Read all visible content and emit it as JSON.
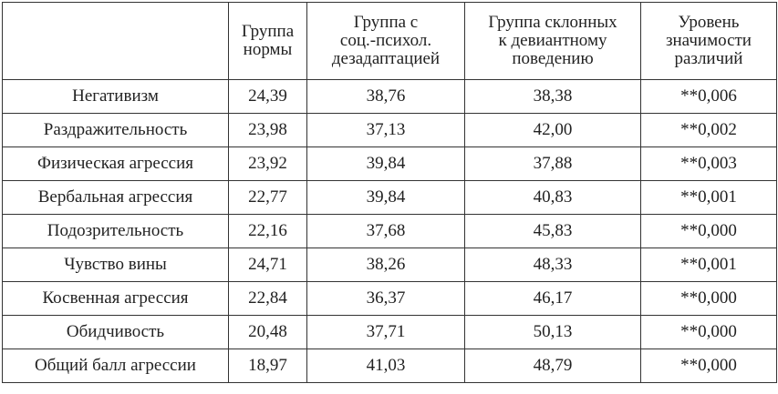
{
  "table": {
    "header": [
      "Группа\nнормы",
      "Группа с\nсоц.-психол.\nдезадаптацией",
      "Группа склонных\nк девиантному\nповедению",
      "Уровень\nзначимости\nразличий"
    ],
    "rows": [
      [
        "Негативизм",
        "24,39",
        "38,76",
        "38,38",
        "**0,006"
      ],
      [
        "Раздражительность",
        "23,98",
        "37,13",
        "42,00",
        "**0,002"
      ],
      [
        "Физическая агрессия",
        "23,92",
        "39,84",
        "37,88",
        "**0,003"
      ],
      [
        "Вербальная агрессия",
        "22,77",
        "39,84",
        "40,83",
        "**0,001"
      ],
      [
        "Подозрительность",
        "22,16",
        "37,68",
        "45,83",
        "**0,000"
      ],
      [
        "Чувство вины",
        "24,71",
        "38,26",
        "48,33",
        "**0,001"
      ],
      [
        "Косвенная агрессия",
        "22,84",
        "36,37",
        "46,17",
        "**0,000"
      ],
      [
        "Обидчивость",
        "20,48",
        "37,71",
        "50,13",
        "**0,000"
      ],
      [
        "Общий балл агрессии",
        "18,97",
        "41,03",
        "48,79",
        "**0,000"
      ]
    ]
  }
}
